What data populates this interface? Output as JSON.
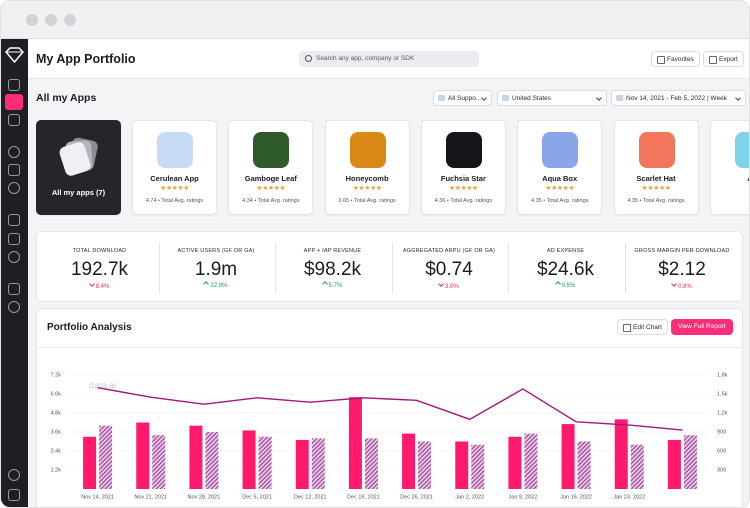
{
  "header": {
    "title": "My App Portfolio",
    "search_placeholder": "Search any app, company or SDK",
    "favorites": "Favorites",
    "export": "Export"
  },
  "apps_section": {
    "title": "All my Apps",
    "filters": [
      "All Suppo...",
      "United States",
      "Nov 14, 2021 - Feb 5, 2022 | Week"
    ],
    "all_tile": "All my apps (7)",
    "apps": [
      {
        "name": "Cerulean App",
        "ratings": "4.74 • Total Avg. ratings",
        "icon_color": "#c7dcf4"
      },
      {
        "name": "Gamboge Leaf",
        "ratings": "4.34 • Total Avg. ratings",
        "icon_color": "#2f5a2c"
      },
      {
        "name": "Honeycomb",
        "ratings": "3.65 • Total Avg. ratings",
        "icon_color": "#d98a16"
      },
      {
        "name": "Fuchsia Star",
        "ratings": "4.36 • Total Avg. ratings",
        "icon_color": "#15151a"
      },
      {
        "name": "Aqua Box",
        "ratings": "4.35 • Total Avg. ratings",
        "icon_color": "#8aa6e8"
      },
      {
        "name": "Scarlet Hat",
        "ratings": "4.35 • Total Avg. ratings",
        "icon_color": "#f2765c"
      },
      {
        "name": "Ap",
        "icon_color": "#7fd3e8"
      }
    ]
  },
  "metrics": [
    {
      "label": "TOTAL DOWNLOAD",
      "value": "192.7k",
      "change": "8.4%",
      "trend": "down",
      "color": "#e8333f"
    },
    {
      "label": "ACTIVE USERS (GF OR GA)",
      "value": "1.9m",
      "change": "22.8%",
      "trend": "up",
      "color": "#1f9d55"
    },
    {
      "label": "APP + IAP REVENUE",
      "value": "$98.2k",
      "change": "5.7%",
      "trend": "up",
      "color": "#1f9d55"
    },
    {
      "label": "AGGREGATED ARPU (GF OR GA)",
      "value": "$0.74",
      "change": "3.0%",
      "trend": "down",
      "color": "#e8333f"
    },
    {
      "label": "AD EXPENSE",
      "value": "$24.6k",
      "change": "0.5%",
      "trend": "up",
      "color": "#1f9d55"
    },
    {
      "label": "GROSS MARGIN PER DOWNLOAD",
      "value": "$2.12",
      "change": "0.8%",
      "trend": "down",
      "color": "#e8333f"
    }
  ],
  "analysis": {
    "title": "Portfolio Analysis",
    "edit": "Edit Chart",
    "report": "View Full Report"
  },
  "chart_data": {
    "type": "bar",
    "watermark": "data.ai",
    "categories": [
      "Nov 14, 2021",
      "Nov 21, 2021",
      "Nov 28, 2021",
      "Dec 5, 2021",
      "Dec 12, 2021",
      "Dec 19, 2021",
      "Dec 26, 2021",
      "Jan 2, 2022",
      "Jan 9, 2022",
      "Jan 16, 2022",
      "Jan 23, 2022",
      null
    ],
    "series": [
      {
        "color": "#ff1a6e",
        "values": [
          3300,
          4200,
          4000,
          3700,
          3100,
          5800,
          3500,
          3000,
          3300,
          4100,
          4400,
          3100
        ]
      },
      {
        "color": "#9b3c96",
        "pattern": "hatch",
        "values": [
          4000,
          3400,
          3600,
          3300,
          3200,
          3200,
          3000,
          2800,
          3500,
          3000,
          2800,
          3400
        ]
      },
      {
        "color": "#a3177d",
        "type": "line",
        "axis": "y2",
        "values": [
          1600,
          1450,
          1340,
          1440,
          1370,
          1440,
          1400,
          1100,
          1580,
          1060,
          1010,
          930
        ]
      }
    ],
    "ylim": [
      0,
      7200
    ],
    "yticks": [
      {
        "value": 1200,
        "label": "1.2k"
      },
      {
        "value": 2400,
        "label": "2.4k"
      },
      {
        "value": 3600,
        "label": "3.6k"
      },
      {
        "value": 4800,
        "label": "4.8k"
      },
      {
        "value": 6000,
        "label": "6.0k"
      },
      {
        "value": 7200,
        "label": "7.2k"
      }
    ],
    "y2lim": [
      0,
      1800
    ],
    "y2ticks": [
      300,
      600,
      900,
      {
        "value": 1200,
        "label": "1.2k"
      },
      {
        "value": 1500,
        "label": "1.5k"
      },
      {
        "value": 1800,
        "label": "1.8k"
      }
    ],
    "grid": true
  }
}
